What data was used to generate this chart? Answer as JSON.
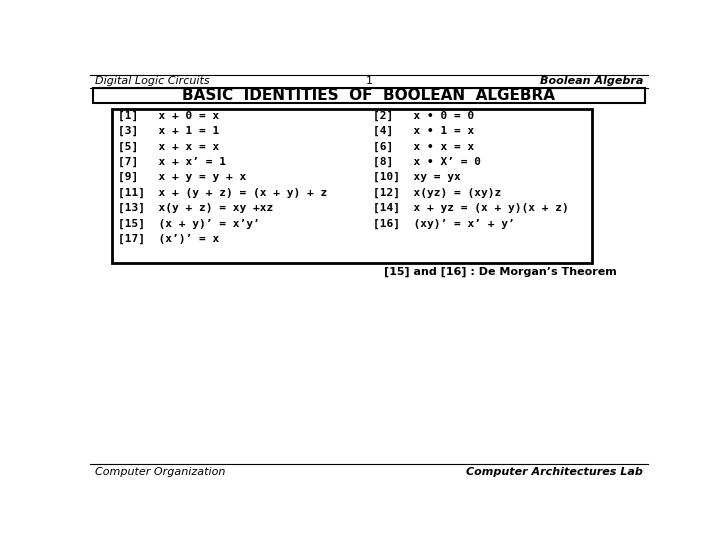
{
  "header_left": "Digital Logic Circuits",
  "header_center": "1",
  "header_right": "Boolean Algebra",
  "title": "BASIC  IDENTITIES  OF  BOOLEAN  ALGEBRA",
  "footer_left": "Computer Organization",
  "footer_right": "Computer Architectures Lab",
  "demorgan_note": "[15] and [16] : De Morgan’s Theorem",
  "left_identities": [
    "[1]   x + 0 = x",
    "[3]   x + 1 = 1",
    "[5]   x + x = x",
    "[7]   x + x’ = 1",
    "[9]   x + y = y + x",
    "[11]  x + (y + z) = (x + y) + z",
    "[13]  x(y + z) = xy +xz",
    "[15]  (x + y)’ = x’y’",
    "[17]  (x’)’ = x"
  ],
  "right_identities": [
    "[2]   x • 0 = 0",
    "[4]   x • 1 = x",
    "[6]   x • x = x",
    "[8]   x • X’ = 0",
    "[10]  xy = yx",
    "[12]  x(yz) = (xy)z",
    "[14]  x + yz = (x + y)(x + z)",
    "[16]  (xy)’ = x’ + y’",
    ""
  ],
  "bg_color": "#ffffff",
  "header_line_color": "#000000",
  "box_color": "#000000",
  "header_fontsize": 8,
  "title_fontsize": 11,
  "identity_fontsize": 8,
  "footer_fontsize": 8,
  "demorgan_fontsize": 8
}
